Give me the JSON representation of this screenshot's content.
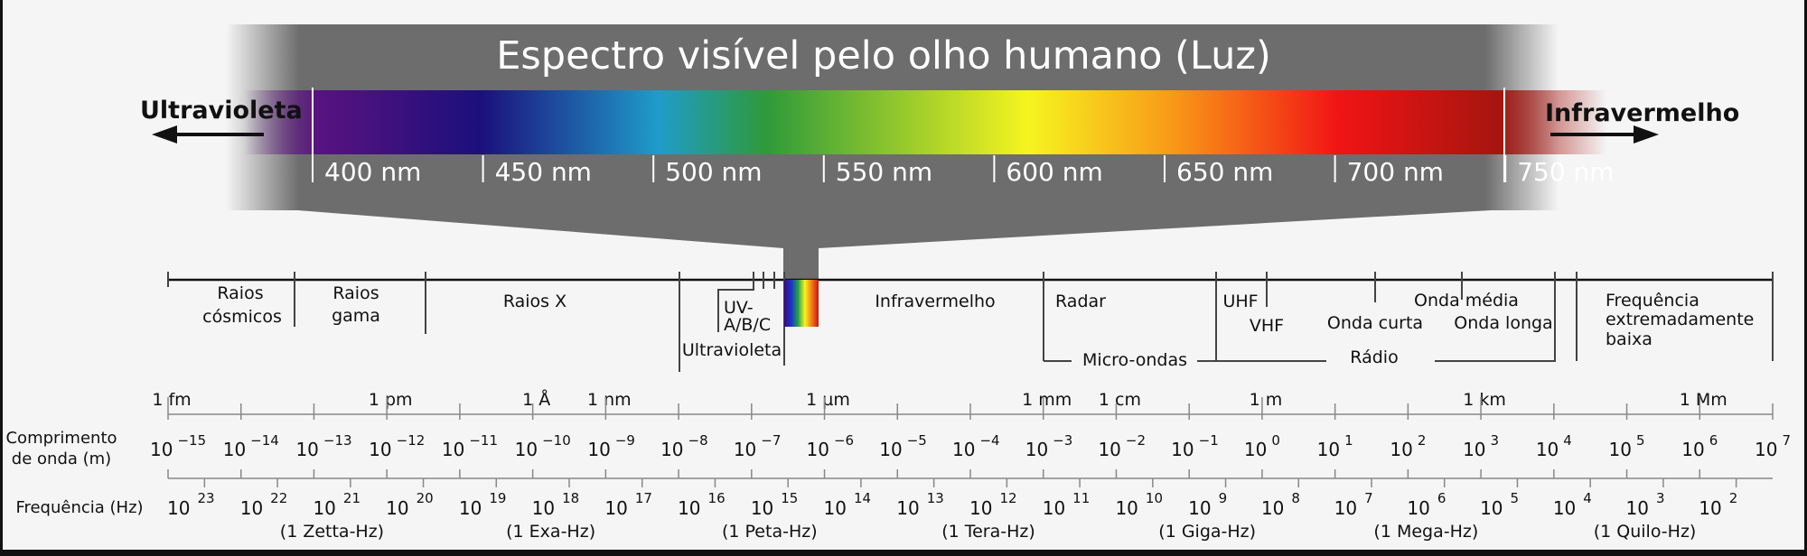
{
  "visible_band": {
    "title": "Espectro visível pelo olho humano (Luz)",
    "left_label": "Ultravioleta",
    "right_label": "Infravermelho",
    "ticks": [
      "400 nm",
      "450 nm",
      "500 nm",
      "550 nm",
      "600 nm",
      "650 nm",
      "700 nm",
      "750 nm"
    ],
    "colors": {
      "panel": "#6d6d6d",
      "violet": "#5a1380",
      "indigo": "#1c0f7c",
      "blue": "#1f9cc9",
      "green": "#2e9a3a",
      "yellow": "#f6f420",
      "orange": "#f99a18",
      "red": "#f11415",
      "darkred": "#a3150f"
    }
  },
  "regions": {
    "cosmic": [
      "Raios",
      "cósmicos"
    ],
    "gamma": [
      "Raios",
      "gama"
    ],
    "xray": "Raios X",
    "uv_abc": [
      "UV-",
      "A/B/C"
    ],
    "ultraviolet": "Ultravioleta",
    "infrared": "Infravermelho",
    "radar": "Radar",
    "microwaves": "Micro-ondas",
    "uhf": "UHF",
    "vhf": "VHF",
    "shortwave": "Onda curta",
    "mediumwave": "Onda média",
    "longwave": "Onda longa",
    "radio": "Rádio",
    "elf": [
      "Frequência",
      "extremadamente",
      "baixa"
    ]
  },
  "length_units": [
    "1 fm",
    "1 pm",
    "1 Å",
    "1 nm",
    "1 µm",
    "1 mm",
    "1 cm",
    "1 m",
    "1 km",
    "1 Mm"
  ],
  "wavelength": {
    "label": [
      "Comprimento",
      "de onda (m)"
    ],
    "base": "10",
    "exponents": [
      "−15",
      "−14",
      "−13",
      "−12",
      "−11",
      "−10",
      "−9",
      "−8",
      "−7",
      "−6",
      "−5",
      "−4",
      "−3",
      "−2",
      "−1",
      "0",
      "1",
      "2",
      "3",
      "4",
      "5",
      "6",
      "7"
    ]
  },
  "frequency": {
    "label": "Frequência (Hz)",
    "base": "10",
    "exponents": [
      "23",
      "22",
      "21",
      "20",
      "19",
      "18",
      "17",
      "16",
      "15",
      "14",
      "13",
      "12",
      "11",
      "10",
      "9",
      "8",
      "7",
      "6",
      "5",
      "4",
      "3",
      "2"
    ],
    "named": [
      "(1 Zetta-Hz)",
      "(1 Exa-Hz)",
      "(1 Peta-Hz)",
      "(1 Tera-Hz)",
      "(1 Giga-Hz)",
      "(1 Mega-Hz)",
      "(1 Quilo-Hz)"
    ]
  }
}
